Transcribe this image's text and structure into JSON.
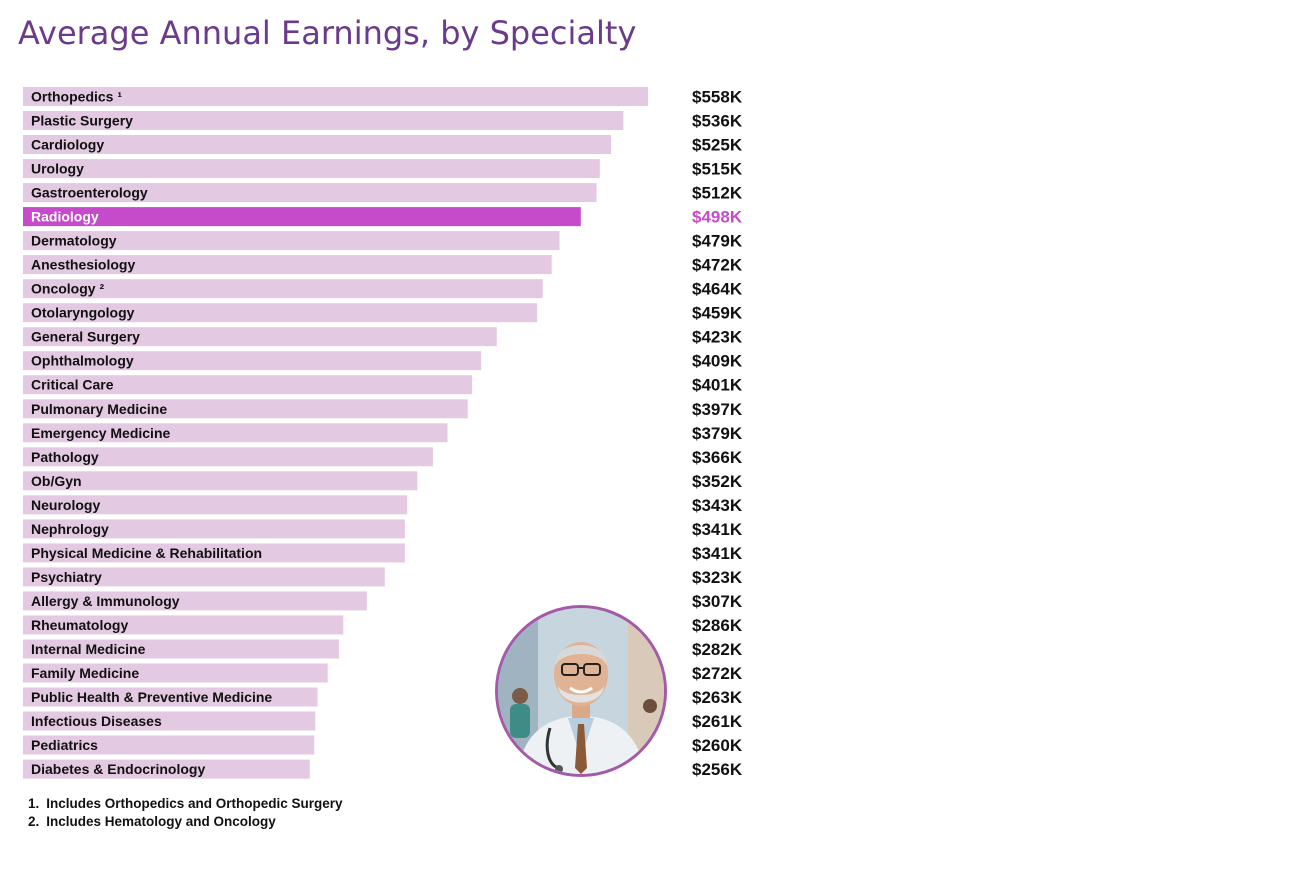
{
  "title": "Average Annual Earnings, by Specialty",
  "colors": {
    "bar": "#e3c9e2",
    "highlight": "#c64bcb",
    "title": "#6b3a8a"
  },
  "chart_data": {
    "type": "bar",
    "orientation": "horizontal",
    "categories": [
      "Orthopedics ¹",
      "Plastic Surgery",
      "Cardiology",
      "Urology",
      "Gastroenterology",
      "Radiology",
      "Dermatology",
      "Anesthesiology",
      "Oncology ²",
      "Otolaryngology",
      "General Surgery",
      "Ophthalmology",
      "Critical Care",
      "Pulmonary Medicine",
      "Emergency Medicine",
      "Pathology",
      "Ob/Gyn",
      "Neurology",
      "Nephrology",
      "Physical Medicine & Rehabilitation",
      "Psychiatry",
      "Allergy & Immunology",
      "Rheumatology",
      "Internal Medicine",
      "Family Medicine",
      "Public Health & Preventive Medicine",
      "Infectious Diseases",
      "Pediatrics",
      "Diabetes & Endocrinology"
    ],
    "values": [
      558,
      536,
      525,
      515,
      512,
      498,
      479,
      472,
      464,
      459,
      423,
      409,
      401,
      397,
      379,
      366,
      352,
      343,
      341,
      341,
      323,
      307,
      286,
      282,
      272,
      263,
      261,
      260,
      256
    ],
    "value_labels": [
      "$558K",
      "$536K",
      "$525K",
      "$515K",
      "$512K",
      "$498K",
      "$479K",
      "$472K",
      "$464K",
      "$459K",
      "$423K",
      "$409K",
      "$401K",
      "$397K",
      "$379K",
      "$366K",
      "$352K",
      "$343K",
      "$341K",
      "$341K",
      "$323K",
      "$307K",
      "$286K",
      "$282K",
      "$272K",
      "$263K",
      "$261K",
      "$260K",
      "$256K"
    ],
    "highlight": "Radiology",
    "unit": "K",
    "grid": false,
    "legend": "none"
  },
  "footnotes": [
    {
      "num": "1.",
      "text": "Includes Orthopedics and Orthopedic Surgery"
    },
    {
      "num": "2.",
      "text": "Includes Hematology and Oncology"
    }
  ],
  "photo": {
    "icon": "doctor-portrait"
  }
}
